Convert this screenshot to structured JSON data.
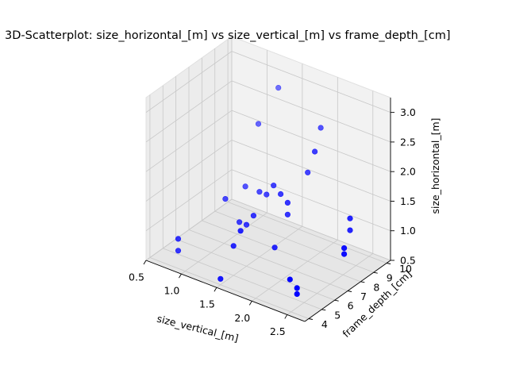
{
  "chart_data": {
    "type": "scatter",
    "projection": "3d",
    "title": "3D-Scatterplot: size_horizontal_[m] vs size_vertical_[m] vs frame_depth_[cm]",
    "xlabel": "size_vertical_[m]",
    "ylabel": "frame_depth_[cm]",
    "zlabel": "size_horizontal_[m]",
    "xticks": [
      "0.5",
      "1.0",
      "1.5",
      "2.0",
      "2.5"
    ],
    "yticks": [
      "4",
      "5",
      "6",
      "7",
      "8",
      "9",
      "10"
    ],
    "zticks": [
      "0.5",
      "1.0",
      "1.5",
      "2.0",
      "2.5",
      "3.0"
    ],
    "xlim": [
      0.5,
      2.75
    ],
    "ylim": [
      3.7,
      10.3
    ],
    "zlim": [
      0.5,
      3.25
    ],
    "grid": true,
    "marker_color": "#0000ff",
    "points": [
      {
        "x": 0.9,
        "y": 4.0,
        "z": 1.0
      },
      {
        "x": 0.9,
        "y": 4.0,
        "z": 0.8
      },
      {
        "x": 1.2,
        "y": 6.0,
        "z": 1.5
      },
      {
        "x": 1.3,
        "y": 8.0,
        "z": 2.5
      },
      {
        "x": 1.4,
        "y": 9.0,
        "z": 3.0
      },
      {
        "x": 1.5,
        "y": 7.0,
        "z": 1.6
      },
      {
        "x": 1.3,
        "y": 7.0,
        "z": 1.6
      },
      {
        "x": 1.4,
        "y": 6.0,
        "z": 1.2
      },
      {
        "x": 1.5,
        "y": 6.0,
        "z": 1.2
      },
      {
        "x": 1.6,
        "y": 6.0,
        "z": 1.4
      },
      {
        "x": 1.6,
        "y": 7.0,
        "z": 1.6
      },
      {
        "x": 1.7,
        "y": 7.0,
        "z": 1.8
      },
      {
        "x": 1.8,
        "y": 7.0,
        "z": 1.7
      },
      {
        "x": 1.9,
        "y": 7.0,
        "z": 1.6
      },
      {
        "x": 1.9,
        "y": 7.0,
        "z": 1.4
      },
      {
        "x": 1.5,
        "y": 5.0,
        "z": 1.0
      },
      {
        "x": 1.6,
        "y": 5.0,
        "z": 1.3
      },
      {
        "x": 2.0,
        "y": 8.0,
        "z": 2.0
      },
      {
        "x": 2.1,
        "y": 8.0,
        "z": 2.4
      },
      {
        "x": 2.0,
        "y": 9.0,
        "z": 2.6
      },
      {
        "x": 1.9,
        "y": 6.0,
        "z": 1.0
      },
      {
        "x": 1.5,
        "y": 4.0,
        "z": 0.6
      },
      {
        "x": 2.3,
        "y": 5.0,
        "z": 0.8
      },
      {
        "x": 2.4,
        "y": 5.0,
        "z": 0.7
      },
      {
        "x": 2.4,
        "y": 5.0,
        "z": 0.6
      },
      {
        "x": 2.6,
        "y": 8.0,
        "z": 1.5
      },
      {
        "x": 2.6,
        "y": 8.0,
        "z": 1.3
      },
      {
        "x": 2.7,
        "y": 7.0,
        "z": 1.2
      },
      {
        "x": 2.7,
        "y": 7.0,
        "z": 1.1
      }
    ]
  }
}
